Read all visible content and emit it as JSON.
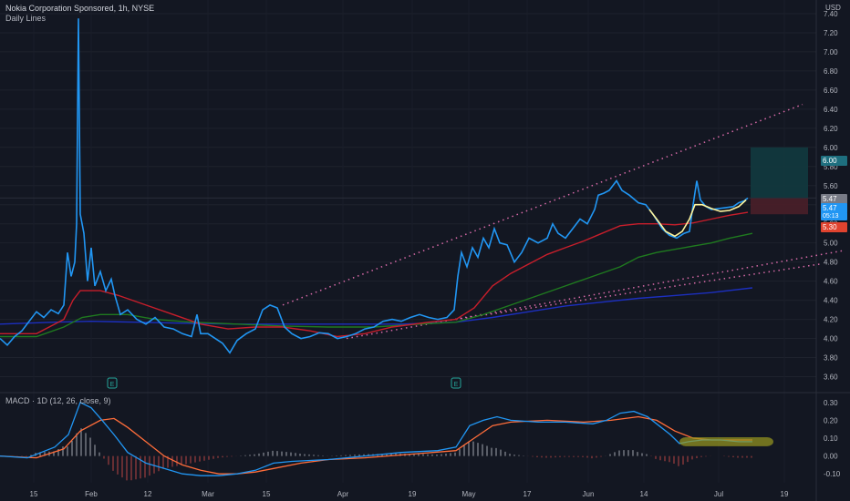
{
  "header": {
    "symbol_title": "Nokia Corporation Sponsored, 1h, NYSE",
    "indicator_label": "Daily Lines"
  },
  "macd_label": "MACD · 1D (12, 26, close, 9)",
  "currency": "USD",
  "price_tags": {
    "target": "6.00",
    "last_grey": "5.47",
    "last_blue": "5.47",
    "countdown": "05:13",
    "stop": "5.30"
  },
  "colors": {
    "background": "#131722",
    "price": "#2196f3",
    "ma_red": "#c81e2b",
    "ma_green": "#1f7a1f",
    "ma_blue": "#1c2fbf",
    "trendline": "#d86aa8",
    "macd_line": "#2196f3",
    "signal_line": "#ff6d3a",
    "cup_handle": "#fff59d",
    "highlight": "#9a9a20"
  },
  "chart_data": {
    "type": "line",
    "title": "Nokia Corporation Sponsored, 1h, NYSE",
    "x_ticks": [
      "15",
      "Feb",
      "12",
      "Mar",
      "15",
      "Apr",
      "19",
      "May",
      "17",
      "Jun",
      "14",
      "Jul",
      "19"
    ],
    "y_ticks": [
      "3.60",
      "3.80",
      "4.00",
      "4.20",
      "4.40",
      "4.60",
      "4.80",
      "5.00",
      "5.20",
      "5.40",
      "5.60",
      "5.80",
      "6.00",
      "6.20",
      "6.40",
      "6.60",
      "6.80",
      "7.00",
      "7.20",
      "7.40"
    ],
    "ylim": [
      3.5,
      7.6
    ],
    "series": [
      {
        "key": "price",
        "points": [
          [
            0,
            4.0
          ],
          [
            8,
            3.93
          ],
          [
            16,
            4.02
          ],
          [
            24,
            4.08
          ],
          [
            32,
            4.18
          ],
          [
            40,
            4.28
          ],
          [
            48,
            4.22
          ],
          [
            56,
            4.3
          ],
          [
            64,
            4.26
          ],
          [
            70,
            4.35
          ],
          [
            74,
            4.9
          ],
          [
            78,
            4.65
          ],
          [
            82,
            4.8
          ],
          [
            84,
            5.2
          ],
          [
            86,
            7.35
          ],
          [
            88,
            5.3
          ],
          [
            92,
            5.1
          ],
          [
            96,
            4.6
          ],
          [
            100,
            4.95
          ],
          [
            104,
            4.55
          ],
          [
            110,
            4.7
          ],
          [
            116,
            4.5
          ],
          [
            122,
            4.62
          ],
          [
            126,
            4.45
          ],
          [
            132,
            4.25
          ],
          [
            140,
            4.3
          ],
          [
            150,
            4.2
          ],
          [
            160,
            4.15
          ],
          [
            170,
            4.22
          ],
          [
            180,
            4.12
          ],
          [
            190,
            4.1
          ],
          [
            200,
            4.05
          ],
          [
            210,
            4.02
          ],
          [
            216,
            4.25
          ],
          [
            220,
            4.05
          ],
          [
            228,
            4.05
          ],
          [
            236,
            4.0
          ],
          [
            244,
            3.95
          ],
          [
            252,
            3.85
          ],
          [
            260,
            3.98
          ],
          [
            270,
            4.05
          ],
          [
            280,
            4.1
          ],
          [
            288,
            4.3
          ],
          [
            296,
            4.35
          ],
          [
            304,
            4.32
          ],
          [
            312,
            4.12
          ],
          [
            320,
            4.05
          ],
          [
            330,
            4.0
          ],
          [
            340,
            4.02
          ],
          [
            350,
            4.06
          ],
          [
            360,
            4.05
          ],
          [
            370,
            4.0
          ],
          [
            380,
            4.02
          ],
          [
            390,
            4.05
          ],
          [
            400,
            4.1
          ],
          [
            410,
            4.12
          ],
          [
            420,
            4.18
          ],
          [
            430,
            4.2
          ],
          [
            440,
            4.18
          ],
          [
            450,
            4.22
          ],
          [
            460,
            4.25
          ],
          [
            470,
            4.22
          ],
          [
            480,
            4.2
          ],
          [
            490,
            4.22
          ],
          [
            498,
            4.3
          ],
          [
            502,
            4.65
          ],
          [
            506,
            4.9
          ],
          [
            512,
            4.75
          ],
          [
            518,
            4.95
          ],
          [
            524,
            4.85
          ],
          [
            530,
            5.05
          ],
          [
            536,
            4.95
          ],
          [
            542,
            5.15
          ],
          [
            548,
            5.0
          ],
          [
            556,
            4.98
          ],
          [
            564,
            4.8
          ],
          [
            572,
            4.9
          ],
          [
            580,
            5.05
          ],
          [
            590,
            5.0
          ],
          [
            600,
            5.05
          ],
          [
            606,
            5.2
          ],
          [
            612,
            5.1
          ],
          [
            620,
            5.05
          ],
          [
            628,
            5.15
          ],
          [
            636,
            5.25
          ],
          [
            644,
            5.2
          ],
          [
            652,
            5.35
          ],
          [
            656,
            5.5
          ],
          [
            662,
            5.52
          ],
          [
            668,
            5.55
          ],
          [
            676,
            5.65
          ],
          [
            682,
            5.55
          ],
          [
            690,
            5.5
          ],
          [
            700,
            5.42
          ],
          [
            708,
            5.4
          ],
          [
            716,
            5.3
          ],
          [
            726,
            5.15
          ],
          [
            734,
            5.08
          ],
          [
            742,
            5.05
          ],
          [
            750,
            5.1
          ],
          [
            756,
            5.12
          ],
          [
            760,
            5.4
          ],
          [
            764,
            5.65
          ],
          [
            768,
            5.45
          ],
          [
            774,
            5.38
          ],
          [
            780,
            5.35
          ],
          [
            788,
            5.36
          ],
          [
            796,
            5.37
          ],
          [
            804,
            5.38
          ],
          [
            810,
            5.42
          ],
          [
            816,
            5.44
          ],
          [
            820,
            5.47
          ]
        ]
      },
      {
        "key": "ma_red",
        "points": [
          [
            0,
            4.05
          ],
          [
            40,
            4.05
          ],
          [
            70,
            4.2
          ],
          [
            80,
            4.4
          ],
          [
            88,
            4.5
          ],
          [
            110,
            4.5
          ],
          [
            130,
            4.45
          ],
          [
            160,
            4.35
          ],
          [
            190,
            4.25
          ],
          [
            220,
            4.15
          ],
          [
            250,
            4.1
          ],
          [
            280,
            4.12
          ],
          [
            310,
            4.12
          ],
          [
            340,
            4.08
          ],
          [
            370,
            4.02
          ],
          [
            400,
            4.05
          ],
          [
            430,
            4.12
          ],
          [
            470,
            4.17
          ],
          [
            500,
            4.2
          ],
          [
            520,
            4.32
          ],
          [
            540,
            4.55
          ],
          [
            560,
            4.68
          ],
          [
            580,
            4.78
          ],
          [
            600,
            4.88
          ],
          [
            620,
            4.95
          ],
          [
            640,
            5.02
          ],
          [
            660,
            5.1
          ],
          [
            680,
            5.18
          ],
          [
            700,
            5.2
          ],
          [
            720,
            5.2
          ],
          [
            740,
            5.19
          ],
          [
            760,
            5.21
          ],
          [
            780,
            5.25
          ],
          [
            800,
            5.29
          ],
          [
            820,
            5.32
          ]
        ]
      },
      {
        "key": "ma_green",
        "points": [
          [
            0,
            4.02
          ],
          [
            40,
            4.02
          ],
          [
            70,
            4.12
          ],
          [
            90,
            4.22
          ],
          [
            110,
            4.25
          ],
          [
            140,
            4.25
          ],
          [
            170,
            4.2
          ],
          [
            210,
            4.17
          ],
          [
            260,
            4.15
          ],
          [
            310,
            4.13
          ],
          [
            360,
            4.12
          ],
          [
            410,
            4.12
          ],
          [
            460,
            4.15
          ],
          [
            500,
            4.17
          ],
          [
            530,
            4.25
          ],
          [
            560,
            4.35
          ],
          [
            590,
            4.45
          ],
          [
            620,
            4.55
          ],
          [
            650,
            4.65
          ],
          [
            680,
            4.75
          ],
          [
            700,
            4.85
          ],
          [
            720,
            4.9
          ],
          [
            750,
            4.95
          ],
          [
            780,
            5.0
          ],
          [
            800,
            5.05
          ],
          [
            825,
            5.1
          ]
        ]
      },
      {
        "key": "ma_blue",
        "points": [
          [
            0,
            4.15
          ],
          [
            60,
            4.17
          ],
          [
            100,
            4.18
          ],
          [
            150,
            4.17
          ],
          [
            200,
            4.16
          ],
          [
            260,
            4.15
          ],
          [
            320,
            4.15
          ],
          [
            380,
            4.15
          ],
          [
            440,
            4.15
          ],
          [
            500,
            4.17
          ],
          [
            540,
            4.22
          ],
          [
            580,
            4.28
          ],
          [
            620,
            4.34
          ],
          [
            660,
            4.38
          ],
          [
            700,
            4.42
          ],
          [
            740,
            4.45
          ],
          [
            780,
            4.48
          ],
          [
            825,
            4.53
          ]
        ]
      }
    ],
    "trendlines": [
      {
        "from": [
          310,
          4.35
        ],
        "to": [
          880,
          6.45
        ]
      },
      {
        "from": [
          380,
          4.0
        ],
        "to": [
          925,
          4.92
        ]
      },
      {
        "from": [
          500,
          4.2
        ],
        "to": [
          900,
          4.78
        ]
      }
    ],
    "cup_handle": [
      [
        712,
        5.35
      ],
      [
        720,
        5.25
      ],
      [
        730,
        5.12
      ],
      [
        740,
        5.07
      ],
      [
        748,
        5.12
      ],
      [
        756,
        5.25
      ],
      [
        762,
        5.4
      ],
      [
        770,
        5.4
      ],
      [
        780,
        5.36
      ],
      [
        790,
        5.33
      ],
      [
        800,
        5.34
      ],
      [
        810,
        5.38
      ],
      [
        818,
        5.45
      ]
    ],
    "position_box": {
      "target": 6.0,
      "entry": 5.47,
      "stop": 5.3,
      "x_start": 823,
      "x_end": 886
    },
    "earnings_markers": [
      123,
      500
    ],
    "macd": {
      "y_ticks": [
        "0.30",
        "0.20",
        "0.10",
        "0.00",
        "-0.10"
      ],
      "ylim": [
        -0.15,
        0.35
      ],
      "macd_line": [
        [
          0,
          0.0
        ],
        [
          30,
          -0.01
        ],
        [
          60,
          0.05
        ],
        [
          75,
          0.12
        ],
        [
          88,
          0.3
        ],
        [
          100,
          0.27
        ],
        [
          112,
          0.2
        ],
        [
          125,
          0.12
        ],
        [
          140,
          0.02
        ],
        [
          160,
          -0.04
        ],
        [
          180,
          -0.07
        ],
        [
          200,
          -0.1
        ],
        [
          220,
          -0.11
        ],
        [
          240,
          -0.11
        ],
        [
          260,
          -0.1
        ],
        [
          280,
          -0.08
        ],
        [
          300,
          -0.04
        ],
        [
          320,
          -0.03
        ],
        [
          360,
          -0.02
        ],
        [
          400,
          0.0
        ],
        [
          440,
          0.02
        ],
        [
          480,
          0.03
        ],
        [
          500,
          0.05
        ],
        [
          515,
          0.17
        ],
        [
          530,
          0.2
        ],
        [
          545,
          0.22
        ],
        [
          560,
          0.2
        ],
        [
          590,
          0.19
        ],
        [
          620,
          0.19
        ],
        [
          650,
          0.18
        ],
        [
          665,
          0.2
        ],
        [
          680,
          0.24
        ],
        [
          695,
          0.25
        ],
        [
          710,
          0.22
        ],
        [
          720,
          0.18
        ],
        [
          735,
          0.12
        ],
        [
          745,
          0.07
        ],
        [
          755,
          0.08
        ],
        [
          770,
          0.09
        ],
        [
          790,
          0.09
        ],
        [
          810,
          0.08
        ],
        [
          825,
          0.08
        ]
      ],
      "signal_line": [
        [
          0,
          0.0
        ],
        [
          40,
          -0.01
        ],
        [
          70,
          0.04
        ],
        [
          88,
          0.14
        ],
        [
          110,
          0.2
        ],
        [
          125,
          0.21
        ],
        [
          140,
          0.16
        ],
        [
          160,
          0.08
        ],
        [
          180,
          0.0
        ],
        [
          200,
          -0.05
        ],
        [
          220,
          -0.08
        ],
        [
          240,
          -0.1
        ],
        [
          260,
          -0.1
        ],
        [
          280,
          -0.09
        ],
        [
          300,
          -0.07
        ],
        [
          330,
          -0.04
        ],
        [
          360,
          -0.02
        ],
        [
          400,
          -0.01
        ],
        [
          450,
          0.01
        ],
        [
          500,
          0.03
        ],
        [
          520,
          0.1
        ],
        [
          540,
          0.17
        ],
        [
          560,
          0.19
        ],
        [
          600,
          0.2
        ],
        [
          640,
          0.19
        ],
        [
          670,
          0.2
        ],
        [
          700,
          0.22
        ],
        [
          720,
          0.2
        ],
        [
          740,
          0.14
        ],
        [
          760,
          0.1
        ],
        [
          780,
          0.09
        ],
        [
          810,
          0.09
        ],
        [
          825,
          0.09
        ]
      ]
    }
  }
}
